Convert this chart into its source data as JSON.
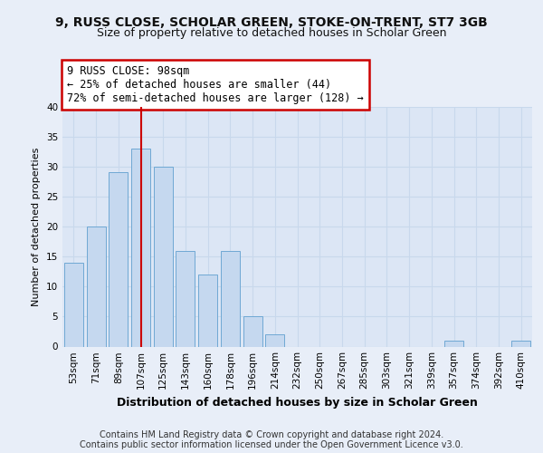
{
  "title": "9, RUSS CLOSE, SCHOLAR GREEN, STOKE-ON-TRENT, ST7 3GB",
  "subtitle": "Size of property relative to detached houses in Scholar Green",
  "xlabel": "Distribution of detached houses by size in Scholar Green",
  "ylabel": "Number of detached properties",
  "categories": [
    "53sqm",
    "71sqm",
    "89sqm",
    "107sqm",
    "125sqm",
    "143sqm",
    "160sqm",
    "178sqm",
    "196sqm",
    "214sqm",
    "232sqm",
    "250sqm",
    "267sqm",
    "285sqm",
    "303sqm",
    "321sqm",
    "339sqm",
    "357sqm",
    "374sqm",
    "392sqm",
    "410sqm"
  ],
  "values": [
    14,
    20,
    29,
    33,
    30,
    16,
    12,
    16,
    5,
    2,
    0,
    0,
    0,
    0,
    0,
    0,
    0,
    1,
    0,
    0,
    1
  ],
  "bar_color": "#c5d8ef",
  "bar_edge_color": "#6fa8d4",
  "bar_width": 0.85,
  "ylim": [
    0,
    40
  ],
  "yticks": [
    0,
    5,
    10,
    15,
    20,
    25,
    30,
    35,
    40
  ],
  "property_line_x": 3,
  "property_line_color": "#cc0000",
  "annotation_text": "9 RUSS CLOSE: 98sqm\n← 25% of detached houses are smaller (44)\n72% of semi-detached houses are larger (128) →",
  "annotation_box_color": "#ffffff",
  "annotation_box_edge_color": "#cc0000",
  "footer_line1": "Contains HM Land Registry data © Crown copyright and database right 2024.",
  "footer_line2": "Contains public sector information licensed under the Open Government Licence v3.0.",
  "background_color": "#e8eef8",
  "plot_background_color": "#dce6f5",
  "grid_color": "#c8d8ec",
  "title_fontsize": 10,
  "subtitle_fontsize": 9,
  "xlabel_fontsize": 9,
  "ylabel_fontsize": 8,
  "tick_fontsize": 7.5,
  "footer_fontsize": 7,
  "annotation_fontsize": 8.5
}
